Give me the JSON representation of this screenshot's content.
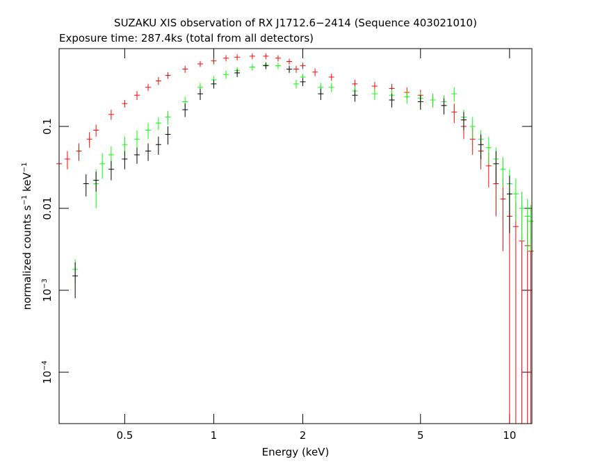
{
  "chart_data": {
    "type": "errorbar",
    "title": "SUZAKU XIS observation of RX J1712.6−2414 (Sequence 403021010)",
    "subtitle": "Exposure time: 287.4ks (total from all detectors)",
    "xlabel": "Energy (keV)",
    "ylabel": [
      "normalized counts s",
      "−1",
      " keV",
      "−1"
    ],
    "xscale": "log",
    "yscale": "log",
    "xlim": [
      0.3,
      11.9
    ],
    "ylim": [
      2.36e-05,
      0.89
    ],
    "xticks": [
      0.5,
      1,
      2,
      5,
      10
    ],
    "yticks": [
      {
        "value": 0.0001,
        "label": "10",
        "exponent": "−4"
      },
      {
        "value": 0.001,
        "label": "10",
        "exponent": "−3"
      },
      0.01,
      0.1
    ],
    "series": [
      {
        "color": "#ff0000",
        "x": [
          0.3,
          0.32,
          0.35,
          0.38,
          0.4,
          0.45,
          0.5,
          0.55,
          0.6,
          0.65,
          0.7,
          0.8,
          0.9,
          1.0,
          1.1,
          1.2,
          1.35,
          1.5,
          1.65,
          1.8,
          1.9,
          2.0,
          2.2,
          2.5,
          3,
          3.5,
          4,
          4.5,
          5,
          5.5,
          6,
          6.5,
          7,
          7.5,
          8,
          8.5,
          9,
          9.5,
          10,
          10.5,
          11,
          11.5,
          11.8
        ],
        "values": [
          0.035,
          0.04,
          0.05,
          0.07,
          0.09,
          0.14,
          0.19,
          0.24,
          0.3,
          0.36,
          0.42,
          0.5,
          0.58,
          0.63,
          0.68,
          0.7,
          0.72,
          0.72,
          0.68,
          0.62,
          0.5,
          0.55,
          0.46,
          0.4,
          0.33,
          0.31,
          0.29,
          0.26,
          0.24,
          0.21,
          0.18,
          0.15,
          0.1,
          0.07,
          0.05,
          0.033,
          0.02,
          0.013,
          0.008,
          0.006,
          0.004,
          0.0035,
          0.003
        ],
        "errors": [
          0.01,
          0.01,
          0.012,
          0.015,
          0.015,
          0.02,
          0.02,
          0.03,
          0.03,
          0.04,
          0.04,
          0.05,
          0.05,
          0.06,
          0.06,
          0.06,
          0.06,
          0.06,
          0.06,
          0.05,
          0.05,
          0.05,
          0.05,
          0.04,
          0.04,
          0.04,
          0.04,
          0.04,
          0.04,
          0.04,
          0.04,
          0.04,
          0.03,
          0.025,
          0.02,
          0.015,
          0.012,
          0.01,
          0.008,
          0.006,
          0.005,
          0.004,
          0.004
        ]
      },
      {
        "color": "#00ff00",
        "x": [
          0.34,
          0.4,
          0.42,
          0.45,
          0.5,
          0.55,
          0.6,
          0.65,
          0.7,
          0.8,
          0.9,
          1.0,
          1.1,
          1.2,
          1.35,
          1.5,
          1.65,
          1.8,
          1.9,
          2.0,
          2.3,
          2.5,
          3,
          3.5,
          4,
          4.5,
          5,
          5.5,
          6,
          6.5,
          7,
          7.5,
          8,
          8.5,
          9,
          9.5,
          10,
          10.5,
          11,
          11.5,
          11.8
        ],
        "values": [
          0.0018,
          0.02,
          0.035,
          0.045,
          0.06,
          0.07,
          0.09,
          0.11,
          0.13,
          0.2,
          0.3,
          0.37,
          0.43,
          0.48,
          0.53,
          0.56,
          0.55,
          0.5,
          0.33,
          0.4,
          0.3,
          0.3,
          0.27,
          0.25,
          0.24,
          0.23,
          0.22,
          0.21,
          0.2,
          0.25,
          0.13,
          0.1,
          0.07,
          0.055,
          0.04,
          0.03,
          0.02,
          0.015,
          0.01,
          0.008,
          0.007
        ],
        "errors": [
          0.0006,
          0.01,
          0.012,
          0.012,
          0.015,
          0.02,
          0.02,
          0.02,
          0.025,
          0.03,
          0.04,
          0.04,
          0.05,
          0.05,
          0.05,
          0.05,
          0.05,
          0.05,
          0.04,
          0.04,
          0.04,
          0.04,
          0.04,
          0.04,
          0.04,
          0.04,
          0.04,
          0.04,
          0.04,
          0.05,
          0.03,
          0.03,
          0.02,
          0.02,
          0.015,
          0.012,
          0.01,
          0.008,
          0.006,
          0.005,
          0.004
        ]
      },
      {
        "color": "#000000",
        "x": [
          0.34,
          0.37,
          0.4,
          0.45,
          0.5,
          0.55,
          0.6,
          0.65,
          0.7,
          0.8,
          0.9,
          1.0,
          1.2,
          1.5,
          1.8,
          2.0,
          2.3,
          3,
          4,
          5,
          6,
          7,
          8,
          9,
          10
        ],
        "values": [
          0.0015,
          0.02,
          0.022,
          0.03,
          0.04,
          0.045,
          0.05,
          0.06,
          0.08,
          0.16,
          0.25,
          0.33,
          0.45,
          0.55,
          0.5,
          0.35,
          0.25,
          0.24,
          0.21,
          0.2,
          0.18,
          0.12,
          0.06,
          0.035,
          0.015
        ],
        "errors": [
          0.0007,
          0.006,
          0.006,
          0.008,
          0.01,
          0.01,
          0.012,
          0.015,
          0.02,
          0.03,
          0.04,
          0.04,
          0.05,
          0.05,
          0.05,
          0.04,
          0.04,
          0.04,
          0.04,
          0.04,
          0.04,
          0.03,
          0.02,
          0.015,
          0.01
        ]
      }
    ]
  }
}
